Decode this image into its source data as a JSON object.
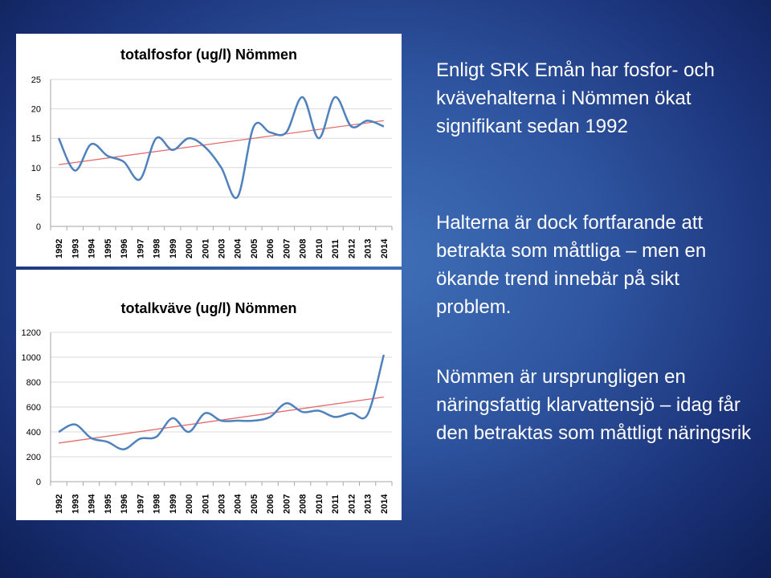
{
  "slide": {
    "paragraphs": [
      "Enligt SRK Emån har fosfor- och kvävehalterna i Nömmen ökat signifikant sedan 1992",
      "Halterna är dock fortfarande att betrakta som måttliga – men en ökande trend innebär på sikt problem.",
      "Nömmen är ursprungligen en näringsfattig klarvattensjö – idag får den betraktas som måttligt näringsrik"
    ]
  },
  "colors": {
    "series_line": "#4f81bd",
    "trend_line": "#e36c6c",
    "grid": "#d9d9d9",
    "axis": "#a6a6a6",
    "text": "#000000"
  },
  "chart_data": [
    {
      "type": "line",
      "title": "totalfosfor (ug/l) Nömmen",
      "x": [
        "1992",
        "1993",
        "1994",
        "1995",
        "1996",
        "1997",
        "1998",
        "1999",
        "2000",
        "2001",
        "2003",
        "2004",
        "2005",
        "2006",
        "2007",
        "2008",
        "2010",
        "2011",
        "2012",
        "2013",
        "2014"
      ],
      "series": [
        {
          "values": [
            15,
            9.5,
            14,
            12,
            11,
            8,
            15,
            13,
            15,
            13.5,
            10,
            5,
            17,
            16,
            16,
            22,
            15,
            22,
            17,
            18,
            17
          ]
        }
      ],
      "trendline": {
        "start": 10.5,
        "end": 18
      },
      "ylim": [
        0,
        25
      ],
      "yticks": [
        0,
        5,
        10,
        15,
        20,
        25
      ],
      "grid": true,
      "legend": "none"
    },
    {
      "type": "line",
      "title": "totalkväve (ug/l) Nömmen",
      "x": [
        "1992",
        "1993",
        "1994",
        "1995",
        "1996",
        "1997",
        "1998",
        "1999",
        "2000",
        "2001",
        "2003",
        "2004",
        "2005",
        "2006",
        "2007",
        "2008",
        "2010",
        "2011",
        "2012",
        "2013",
        "2014"
      ],
      "series": [
        {
          "values": [
            400,
            460,
            350,
            320,
            260,
            345,
            360,
            510,
            400,
            550,
            490,
            490,
            490,
            520,
            630,
            560,
            570,
            520,
            550,
            540,
            1020
          ]
        }
      ],
      "trendline": {
        "start": 310,
        "end": 680
      },
      "ylim": [
        0,
        1200
      ],
      "yticks": [
        0,
        200,
        400,
        600,
        800,
        1000,
        1200
      ],
      "grid": true,
      "legend": "none"
    }
  ]
}
